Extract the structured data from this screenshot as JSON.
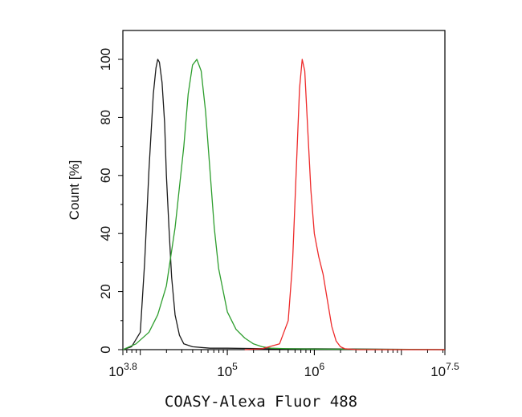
{
  "chart_data": {
    "type": "line",
    "title": "",
    "xlabel": "COASY-Alexa Fluor 488",
    "ylabel": "Count [%]",
    "x_scale": "log10",
    "xlim_log10": [
      3.8,
      7.5
    ],
    "ylim": [
      0,
      110
    ],
    "x_ticks": [
      {
        "base": "10",
        "exp": "3.8",
        "log10": 3.8
      },
      {
        "base": "10",
        "exp": "5",
        "log10": 5
      },
      {
        "base": "10",
        "exp": "6",
        "log10": 6
      },
      {
        "base": "10",
        "exp": "7.5",
        "log10": 7.5
      }
    ],
    "y_ticks": [
      "0",
      "20",
      "40",
      "60",
      "80",
      "100"
    ],
    "grid": false,
    "legend": "none",
    "series": [
      {
        "color": "#1a1a1a",
        "x_log10": [
          3.8,
          3.9,
          4.0,
          4.05,
          4.1,
          4.15,
          4.18,
          4.2,
          4.22,
          4.25,
          4.28,
          4.3,
          4.33,
          4.36,
          4.4,
          4.45,
          4.5,
          4.6,
          4.8,
          5.0,
          5.5,
          6.0,
          7.5
        ],
        "y": [
          0,
          1,
          6,
          30,
          62,
          88,
          97,
          100,
          99,
          92,
          78,
          60,
          42,
          25,
          12,
          5,
          2,
          1,
          0.5,
          0.5,
          0.3,
          0.3,
          0
        ]
      },
      {
        "color": "#2e9e2e",
        "x_log10": [
          3.8,
          3.95,
          4.1,
          4.2,
          4.3,
          4.4,
          4.5,
          4.55,
          4.6,
          4.65,
          4.7,
          4.75,
          4.8,
          4.85,
          4.9,
          5.0,
          5.1,
          5.2,
          5.3,
          5.4,
          5.5,
          5.7,
          6.0,
          7.5
        ],
        "y": [
          0,
          2,
          6,
          12,
          22,
          42,
          70,
          88,
          98,
          100,
          96,
          82,
          62,
          42,
          28,
          13,
          7,
          4,
          2,
          1,
          0.5,
          0.3,
          0.2,
          0
        ]
      },
      {
        "color": "#ee2a2a",
        "x_log10": [
          5.2,
          5.4,
          5.6,
          5.7,
          5.75,
          5.8,
          5.83,
          5.86,
          5.89,
          5.92,
          5.96,
          6.0,
          6.05,
          6.1,
          6.15,
          6.2,
          6.25,
          6.3,
          6.35,
          6.5,
          7.5
        ],
        "y": [
          0,
          0.3,
          2,
          10,
          30,
          68,
          90,
          100,
          96,
          78,
          55,
          40,
          32,
          26,
          17,
          8,
          3,
          1,
          0.3,
          0,
          0
        ]
      }
    ]
  }
}
